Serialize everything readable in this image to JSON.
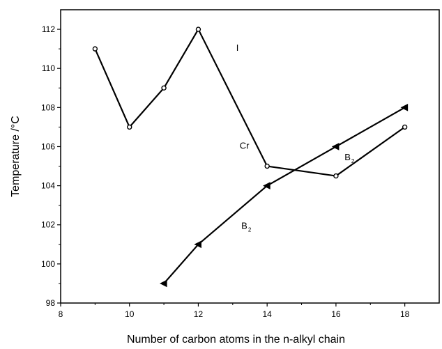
{
  "chart_data": {
    "type": "line",
    "xlabel": "Number of carbon atoms in the n-alkyl chain",
    "ylabel": "Temperature /°C",
    "xlim": [
      8,
      19
    ],
    "ylim": [
      98,
      113
    ],
    "x_ticks": [
      8,
      10,
      12,
      14,
      16,
      18
    ],
    "y_ticks": [
      98,
      100,
      102,
      104,
      106,
      108,
      110,
      112
    ],
    "grid": false,
    "series": [
      {
        "marker": "open-circle",
        "color": "#000000",
        "x": [
          9,
          10,
          11,
          12,
          14,
          16,
          18
        ],
        "y": [
          111,
          107,
          109,
          112,
          105,
          104.5,
          107
        ]
      },
      {
        "marker": "left-triangle",
        "color": "#000000",
        "x": [
          11,
          12,
          14,
          16,
          18
        ],
        "y": [
          99,
          101,
          104,
          106,
          108
        ]
      }
    ],
    "annotations": [
      {
        "text": "I",
        "x": 13.1,
        "y": 110.9
      },
      {
        "text": "Cr",
        "x": 13.2,
        "y": 105.9
      },
      {
        "text": "B",
        "sub": "2",
        "x": 16.25,
        "y": 105.3
      },
      {
        "text": "B",
        "sub": "2",
        "x": 13.25,
        "y": 101.8
      }
    ]
  }
}
